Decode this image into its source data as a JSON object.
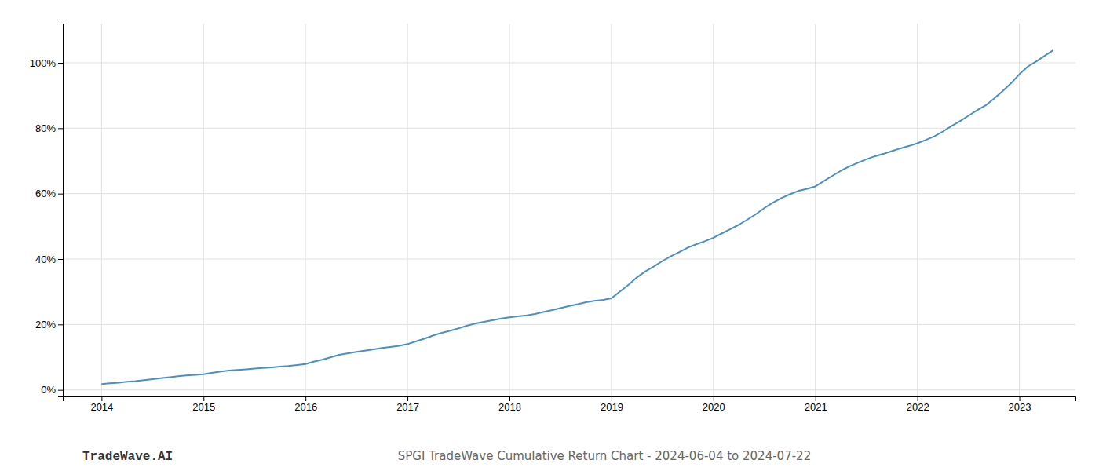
{
  "chart_data": {
    "type": "line",
    "title": "SPGI TradeWave Cumulative Return Chart - 2024-06-04 to 2024-07-22",
    "annotations": [
      "TradeWave.AI"
    ],
    "color": "#4a90c4",
    "grid": true,
    "x": [
      2014.0,
      2014.08,
      2014.17,
      2014.25,
      2014.33,
      2014.42,
      2014.5,
      2014.58,
      2014.67,
      2014.75,
      2014.83,
      2014.92,
      2015.0,
      2015.08,
      2015.17,
      2015.25,
      2015.33,
      2015.42,
      2015.5,
      2015.58,
      2015.67,
      2015.75,
      2015.83,
      2015.92,
      2016.0,
      2016.08,
      2016.17,
      2016.25,
      2016.33,
      2016.42,
      2016.5,
      2016.58,
      2016.67,
      2016.75,
      2016.83,
      2016.92,
      2017.0,
      2017.08,
      2017.17,
      2017.25,
      2017.33,
      2017.42,
      2017.5,
      2017.58,
      2017.67,
      2017.75,
      2017.83,
      2017.92,
      2018.0,
      2018.08,
      2018.17,
      2018.25,
      2018.33,
      2018.42,
      2018.5,
      2018.58,
      2018.67,
      2018.75,
      2018.83,
      2018.92,
      2019.0,
      2019.08,
      2019.17,
      2019.25,
      2019.33,
      2019.42,
      2019.5,
      2019.58,
      2019.67,
      2019.75,
      2019.83,
      2019.92,
      2020.0,
      2020.08,
      2020.17,
      2020.25,
      2020.33,
      2020.42,
      2020.5,
      2020.58,
      2020.67,
      2020.75,
      2020.83,
      2020.92,
      2021.0,
      2021.08,
      2021.17,
      2021.25,
      2021.33,
      2021.42,
      2021.5,
      2021.58,
      2021.67,
      2021.75,
      2021.83,
      2021.92,
      2022.0,
      2022.08,
      2022.17,
      2022.25,
      2022.33,
      2022.42,
      2022.5,
      2022.58,
      2022.67,
      2022.75,
      2022.83,
      2022.92,
      2023.0,
      2023.08,
      2023.17,
      2023.25,
      2023.33
    ],
    "values": [
      0.018,
      0.02,
      0.022,
      0.025,
      0.027,
      0.03,
      0.033,
      0.036,
      0.039,
      0.042,
      0.044,
      0.046,
      0.048,
      0.052,
      0.056,
      0.059,
      0.061,
      0.063,
      0.065,
      0.067,
      0.069,
      0.071,
      0.073,
      0.076,
      0.079,
      0.086,
      0.093,
      0.1,
      0.107,
      0.112,
      0.116,
      0.12,
      0.124,
      0.128,
      0.131,
      0.135,
      0.14,
      0.148,
      0.157,
      0.166,
      0.174,
      0.181,
      0.188,
      0.196,
      0.203,
      0.208,
      0.213,
      0.218,
      0.222,
      0.225,
      0.228,
      0.232,
      0.238,
      0.244,
      0.25,
      0.256,
      0.262,
      0.268,
      0.272,
      0.275,
      0.28,
      0.3,
      0.322,
      0.344,
      0.362,
      0.378,
      0.394,
      0.408,
      0.422,
      0.435,
      0.445,
      0.455,
      0.465,
      0.478,
      0.492,
      0.505,
      0.52,
      0.538,
      0.556,
      0.572,
      0.587,
      0.598,
      0.608,
      0.615,
      0.622,
      0.638,
      0.655,
      0.67,
      0.683,
      0.695,
      0.705,
      0.714,
      0.722,
      0.73,
      0.738,
      0.746,
      0.754,
      0.764,
      0.776,
      0.79,
      0.806,
      0.822,
      0.838,
      0.854,
      0.87,
      0.89,
      0.912,
      0.938,
      0.965,
      0.988,
      1.005,
      1.022,
      1.038
    ],
    "xlim": [
      2013.62,
      2023.55
    ],
    "ylim": [
      -0.02,
      1.12
    ],
    "xticks": [
      2014,
      2015,
      2016,
      2017,
      2018,
      2019,
      2020,
      2021,
      2022,
      2023
    ],
    "yticks": [
      {
        "value": 0.0,
        "label": "0%"
      },
      {
        "value": 0.2,
        "label": "20%"
      },
      {
        "value": 0.4,
        "label": "40%"
      },
      {
        "value": 0.6,
        "label": "60%"
      },
      {
        "value": 0.8,
        "label": "80%"
      },
      {
        "value": 1.0,
        "label": "100%"
      }
    ]
  }
}
